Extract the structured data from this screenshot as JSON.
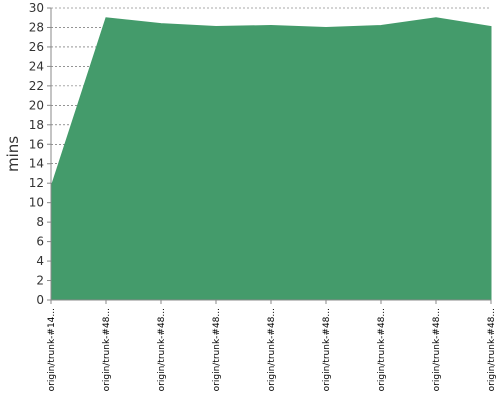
{
  "chart_data": {
    "type": "area",
    "title": "",
    "xlabel": "",
    "ylabel": "mins",
    "categories": [
      "origin/trunk-#14...",
      "origin/trunk-#48...",
      "origin/trunk-#48...",
      "origin/trunk-#48...",
      "origin/trunk-#48...",
      "origin/trunk-#48...",
      "origin/trunk-#48...",
      "origin/trunk-#48...",
      "origin/trunk-#48..."
    ],
    "values": [
      11.6,
      29.0,
      28.4,
      28.1,
      28.2,
      28.0,
      28.2,
      29.0,
      28.1
    ],
    "ylim": [
      0,
      30
    ],
    "yticks": [
      0,
      2,
      4,
      6,
      8,
      10,
      12,
      14,
      16,
      18,
      20,
      22,
      24,
      26,
      28,
      30
    ],
    "grid": true,
    "fill_color": "#449b6b",
    "legend": "none"
  }
}
